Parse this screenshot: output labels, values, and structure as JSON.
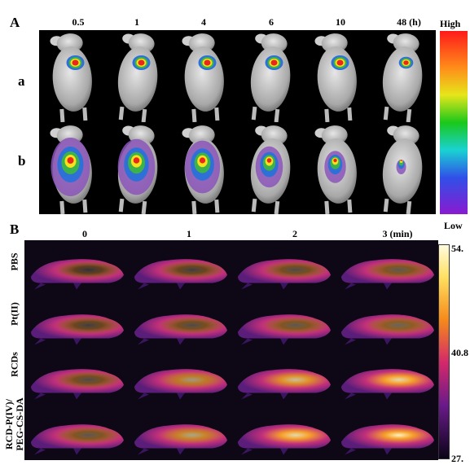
{
  "panelA": {
    "letter": "A",
    "times": [
      "0.5",
      "1",
      "4",
      "6",
      "10",
      "48 (h)"
    ],
    "rows": [
      "a",
      "b"
    ],
    "scale": {
      "high": "High",
      "low": "Low"
    },
    "colors": {
      "hot": "#e8281c",
      "warm": "#f6e21b",
      "mid": "#3cb24a",
      "cool": "#2f6fd8",
      "faint": "#8a54b8"
    }
  },
  "panelB": {
    "letter": "B",
    "times": [
      "0",
      "1",
      "2",
      "3 (min)"
    ],
    "rows": [
      "PBS",
      "Pt(II)",
      "RCDs",
      "RCD-P(IV)/\nPEG-CS-DA"
    ],
    "scale": {
      "max": "54.",
      "mid": "40.8",
      "min": "27."
    },
    "intensity": [
      [
        0.15,
        0.2,
        0.25,
        0.3
      ],
      [
        0.2,
        0.25,
        0.3,
        0.35
      ],
      [
        0.25,
        0.55,
        0.7,
        0.8
      ],
      [
        0.3,
        0.6,
        0.8,
        0.9
      ]
    ]
  }
}
